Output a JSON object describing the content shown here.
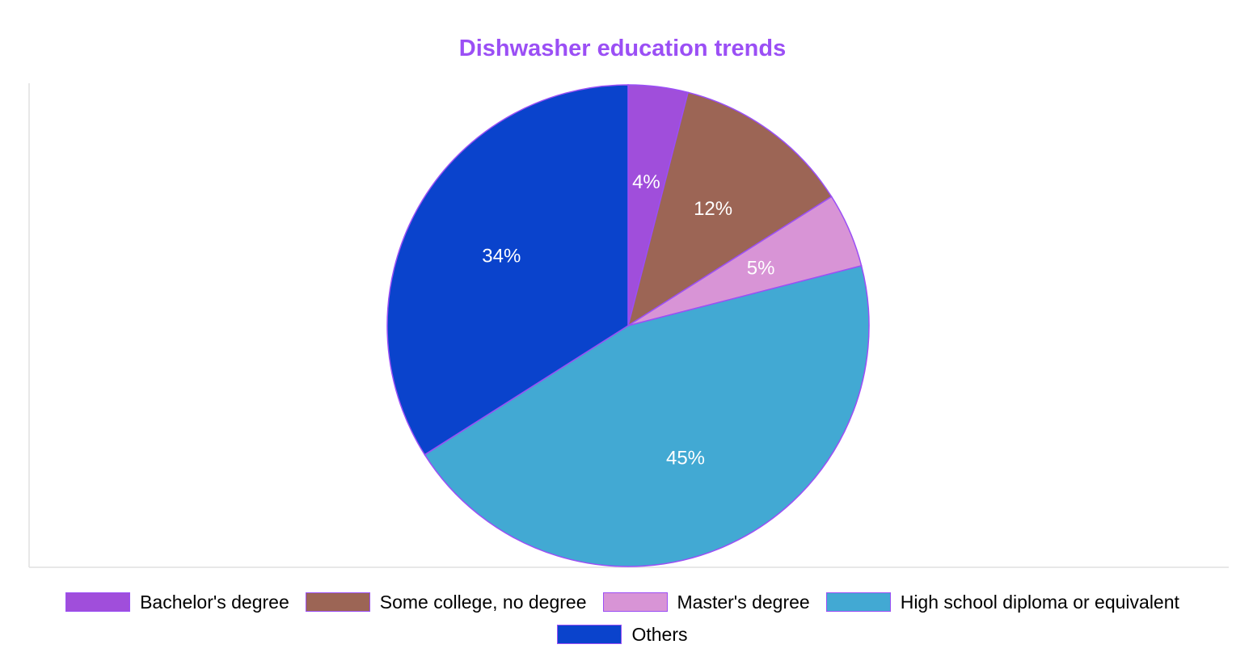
{
  "chart_data": {
    "type": "pie",
    "title": "Dishwasher education trends",
    "slices": [
      {
        "label": "Bachelor's degree",
        "value": 4,
        "display": "4%",
        "color": "#a04edb"
      },
      {
        "label": "Some college, no degree",
        "value": 12,
        "display": "12%",
        "color": "#9c6555"
      },
      {
        "label": "Master's degree",
        "value": 5,
        "display": "5%",
        "color": "#d894d6"
      },
      {
        "label": "High school diploma or equivalent",
        "value": 45,
        "display": "45%",
        "color": "#42a9d3"
      },
      {
        "label": "Others",
        "value": 34,
        "display": "34%",
        "color": "#0a43cc"
      }
    ],
    "slice_border_color": "#9b4ff5",
    "legend_position": "bottom"
  }
}
